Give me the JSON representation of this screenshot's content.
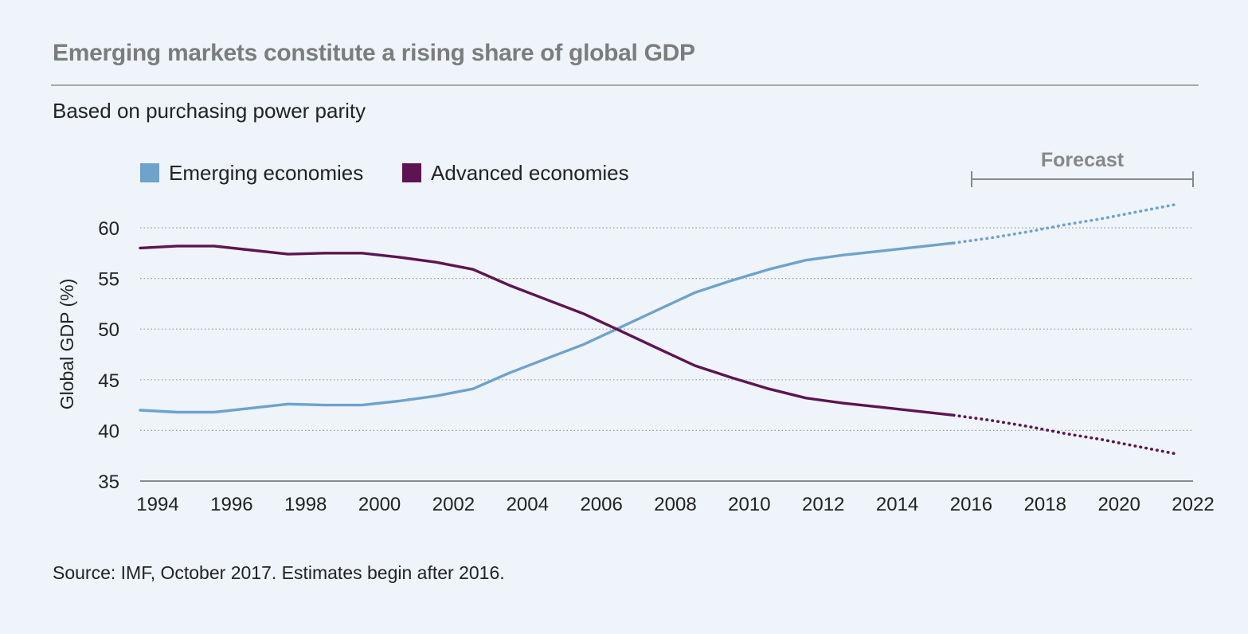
{
  "title": "Emerging markets constitute a rising share of global GDP",
  "subtitle": "Based on purchasing power parity",
  "source": "Source: IMF, October 2017. Estimates begin after 2016.",
  "colors": {
    "emerging": "#6fa2cc",
    "advanced": "#5e1452",
    "grid": "#9a9a9a",
    "forecast": "#888888",
    "background": "#eef4fa"
  },
  "chart_data": {
    "type": "line",
    "ylabel": "Global GDP (%)",
    "xlabel": "",
    "xlim": [
      1994,
      2022
    ],
    "ylim": [
      35,
      60
    ],
    "y_ticks": [
      "35",
      "40",
      "45",
      "50",
      "55",
      "60"
    ],
    "x_ticks": [
      "1994",
      "1996",
      "1998",
      "2000",
      "2002",
      "2004",
      "2006",
      "2008",
      "2010",
      "2012",
      "2014",
      "2016",
      "2018",
      "2020",
      "2022"
    ],
    "grid": true,
    "legend_position": "top-left",
    "forecast_label": "Forecast",
    "forecast_range": [
      2016.5,
      2022.5
    ],
    "x": [
      1994,
      1995,
      1996,
      1997,
      1998,
      1999,
      2000,
      2001,
      2002,
      2003,
      2004,
      2005,
      2006,
      2007,
      2008,
      2009,
      2010,
      2011,
      2012,
      2013,
      2014,
      2015,
      2016,
      2017,
      2018,
      2019,
      2020,
      2021,
      2022
    ],
    "series": [
      {
        "name": "Emerging economies",
        "color": "#6fa2cc",
        "values": [
          42.0,
          41.8,
          41.8,
          42.2,
          42.6,
          42.5,
          42.5,
          42.9,
          43.4,
          44.1,
          45.7,
          47.1,
          48.5,
          50.2,
          51.9,
          53.6,
          54.8,
          55.9,
          56.8,
          57.3,
          57.7,
          58.1,
          58.5,
          59.0,
          59.6,
          60.3,
          60.9,
          61.6,
          62.3
        ],
        "actual_until": 2016.5
      },
      {
        "name": "Advanced economies",
        "color": "#5e1452",
        "values": [
          58.0,
          58.2,
          58.2,
          57.8,
          57.4,
          57.5,
          57.5,
          57.1,
          56.6,
          55.9,
          54.3,
          52.9,
          51.5,
          49.8,
          48.1,
          46.4,
          45.2,
          44.1,
          43.2,
          42.7,
          42.3,
          41.9,
          41.5,
          41.0,
          40.4,
          39.7,
          39.1,
          38.4,
          37.7
        ],
        "actual_until": 2016.5
      }
    ]
  }
}
